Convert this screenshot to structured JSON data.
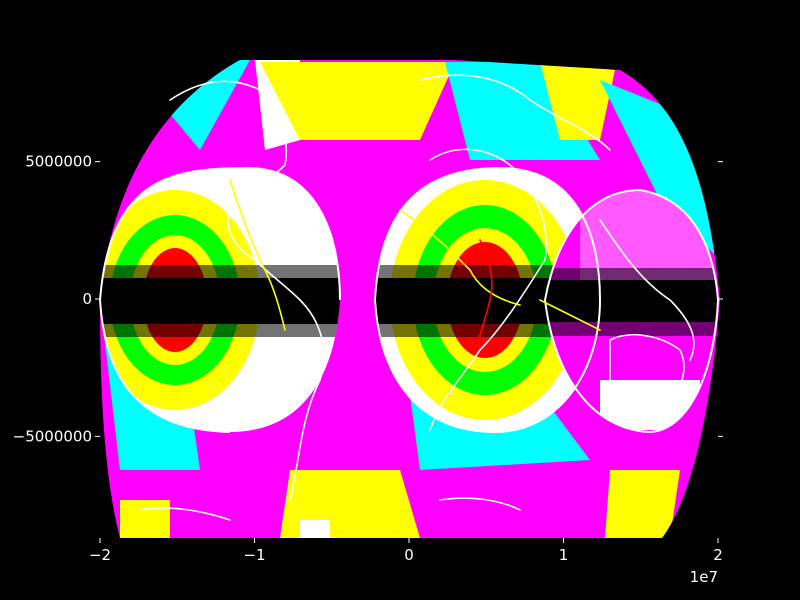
{
  "chart_data": {
    "type": "heatmap",
    "title": "",
    "xlabel": "",
    "ylabel": "",
    "xlim": [
      -20000000,
      20000000
    ],
    "ylim": [
      -8700000,
      8700000
    ],
    "x_ticks": [
      {
        "value": -20000000,
        "label": "−2"
      },
      {
        "value": -10000000,
        "label": "−1"
      },
      {
        "value": 0,
        "label": "0"
      },
      {
        "value": 10000000,
        "label": "1"
      },
      {
        "value": 20000000,
        "label": "2"
      }
    ],
    "x_offset_label": "1e7",
    "y_ticks": [
      {
        "value": 5000000,
        "label": "5000000"
      },
      {
        "value": 0,
        "label": "0"
      },
      {
        "value": -5000000,
        "label": "−5000000"
      }
    ],
    "projection": "interrupted Goode homolosine (world map)",
    "color_bands": [
      {
        "name": "inner",
        "color": "#000000"
      },
      {
        "name": "band-1",
        "color": "#ff0000"
      },
      {
        "name": "band-2",
        "color": "#ffff00"
      },
      {
        "name": "band-3",
        "color": "#00ff00"
      },
      {
        "name": "band-4",
        "color": "#ffffff"
      },
      {
        "name": "band-5",
        "color": "#00ffff"
      },
      {
        "name": "band-6",
        "color": "#ff00ff"
      }
    ],
    "overlay_colors": {
      "coastline": "#ffffff",
      "rivers": "#ffff00",
      "borders": "#ff0000"
    },
    "grid": false,
    "legend": "none"
  }
}
